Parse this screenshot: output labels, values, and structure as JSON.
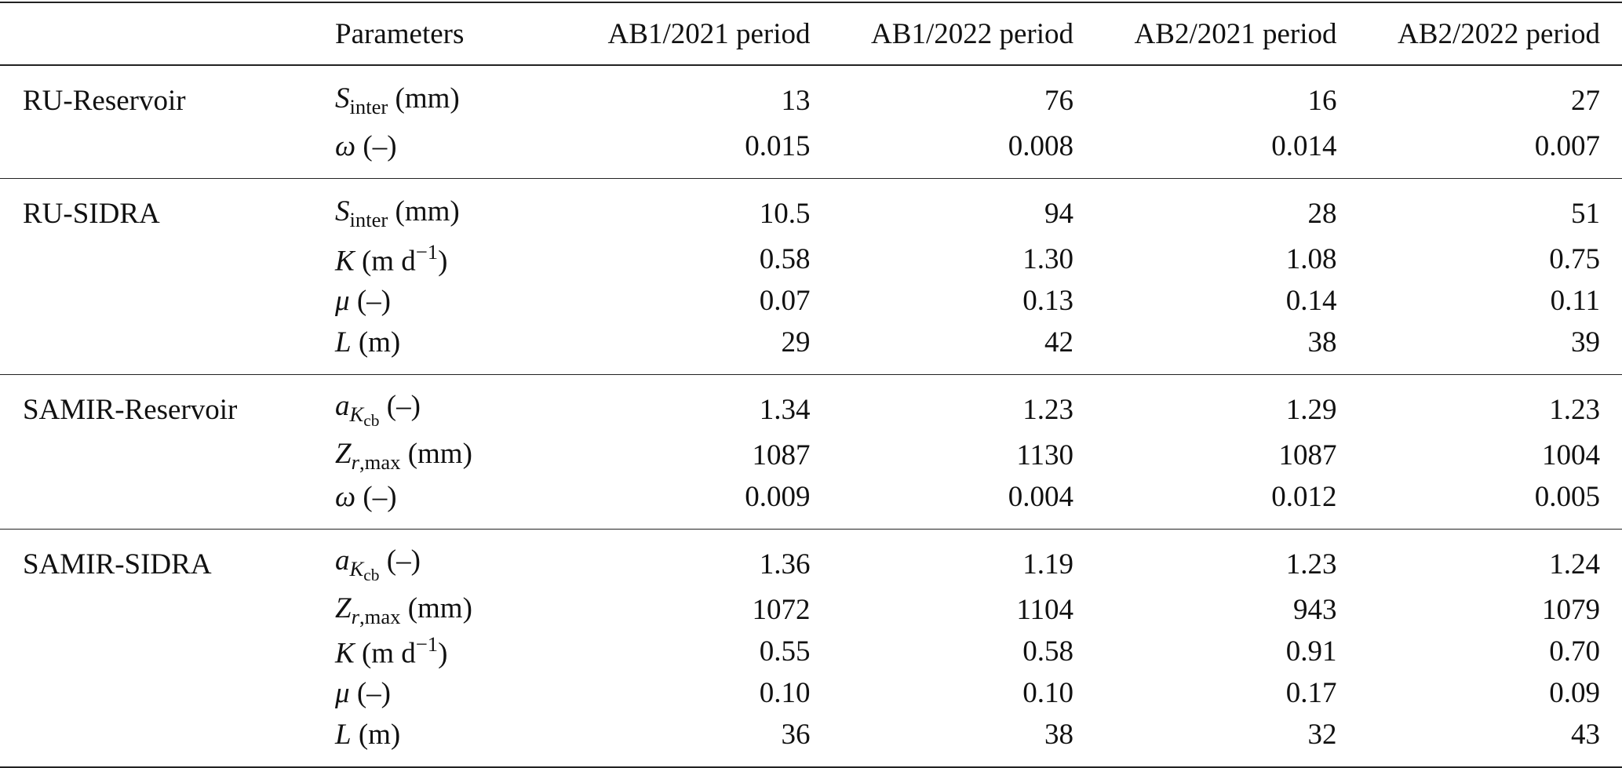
{
  "table": {
    "header": {
      "parameters": "Parameters",
      "periods": [
        "AB1/2021 period",
        "AB1/2022 period",
        "AB2/2021 period",
        "AB2/2022 period"
      ]
    },
    "groups": [
      {
        "name": "RU-Reservoir",
        "rows": [
          {
            "parameter": [
              {
                "text": "S",
                "format": "italic"
              },
              {
                "text": "inter",
                "format": "subscript"
              },
              {
                "text": " (mm)",
                "format": "roman"
              }
            ],
            "values": [
              "13",
              "76",
              "16",
              "27"
            ]
          },
          {
            "parameter": [
              {
                "text": "ω",
                "format": "italic"
              },
              {
                "text": " (–)",
                "format": "roman"
              }
            ],
            "values": [
              "0.015",
              "0.008",
              "0.014",
              "0.007"
            ]
          }
        ]
      },
      {
        "name": "RU-SIDRA",
        "rows": [
          {
            "parameter": [
              {
                "text": "S",
                "format": "italic"
              },
              {
                "text": "inter",
                "format": "subscript"
              },
              {
                "text": " (mm)",
                "format": "roman"
              }
            ],
            "values": [
              "10.5",
              "94",
              "28",
              "51"
            ]
          },
          {
            "parameter": [
              {
                "text": "K",
                "format": "italic"
              },
              {
                "text": " (m d",
                "format": "roman"
              },
              {
                "text": "−1",
                "format": "superscript"
              },
              {
                "text": ")",
                "format": "roman"
              }
            ],
            "values": [
              "0.58",
              "1.30",
              "1.08",
              "0.75"
            ]
          },
          {
            "parameter": [
              {
                "text": "μ",
                "format": "italic"
              },
              {
                "text": " (–)",
                "format": "roman"
              }
            ],
            "values": [
              "0.07",
              "0.13",
              "0.14",
              "0.11"
            ]
          },
          {
            "parameter": [
              {
                "text": "L",
                "format": "italic"
              },
              {
                "text": " (m)",
                "format": "roman"
              }
            ],
            "values": [
              "29",
              "42",
              "38",
              "39"
            ]
          }
        ]
      },
      {
        "name": "SAMIR-Reservoir",
        "rows": [
          {
            "parameter": [
              {
                "text": "a",
                "format": "italic"
              },
              {
                "text": "K",
                "format": "italic-subscript"
              },
              {
                "text": "cb",
                "format": "subsubscript"
              },
              {
                "text": " (–)",
                "format": "roman"
              }
            ],
            "values": [
              "1.34",
              "1.23",
              "1.29",
              "1.23"
            ]
          },
          {
            "parameter": [
              {
                "text": "Z",
                "format": "italic"
              },
              {
                "text": "r",
                "format": "italic-subscript"
              },
              {
                "text": ",max",
                "format": "subscript"
              },
              {
                "text": " (mm)",
                "format": "roman"
              }
            ],
            "values": [
              "1087",
              "1130",
              "1087",
              "1004"
            ]
          },
          {
            "parameter": [
              {
                "text": "ω",
                "format": "italic"
              },
              {
                "text": " (–)",
                "format": "roman"
              }
            ],
            "values": [
              "0.009",
              "0.004",
              "0.012",
              "0.005"
            ]
          }
        ]
      },
      {
        "name": "SAMIR-SIDRA",
        "rows": [
          {
            "parameter": [
              {
                "text": "a",
                "format": "italic"
              },
              {
                "text": "K",
                "format": "italic-subscript"
              },
              {
                "text": "cb",
                "format": "subsubscript"
              },
              {
                "text": " (–)",
                "format": "roman"
              }
            ],
            "values": [
              "1.36",
              "1.19",
              "1.23",
              "1.24"
            ]
          },
          {
            "parameter": [
              {
                "text": "Z",
                "format": "italic"
              },
              {
                "text": "r",
                "format": "italic-subscript"
              },
              {
                "text": ",max",
                "format": "subscript"
              },
              {
                "text": " (mm)",
                "format": "roman"
              }
            ],
            "values": [
              "1072",
              "1104",
              "943",
              "1079"
            ]
          },
          {
            "parameter": [
              {
                "text": "K",
                "format": "italic"
              },
              {
                "text": " (m d",
                "format": "roman"
              },
              {
                "text": "−1",
                "format": "superscript"
              },
              {
                "text": ")",
                "format": "roman"
              }
            ],
            "values": [
              "0.55",
              "0.58",
              "0.91",
              "0.70"
            ]
          },
          {
            "parameter": [
              {
                "text": "μ",
                "format": "italic"
              },
              {
                "text": " (–)",
                "format": "roman"
              }
            ],
            "values": [
              "0.10",
              "0.10",
              "0.17",
              "0.09"
            ]
          },
          {
            "parameter": [
              {
                "text": "L",
                "format": "italic"
              },
              {
                "text": " (m)",
                "format": "roman"
              }
            ],
            "values": [
              "36",
              "38",
              "32",
              "43"
            ]
          }
        ]
      }
    ]
  }
}
